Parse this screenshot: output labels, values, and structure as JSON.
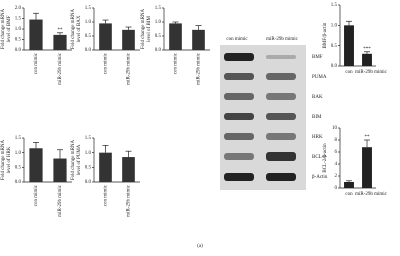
{
  "chart_data": [
    {
      "type": "bar",
      "ylabel": [
        "Fold change mRNA",
        "level of BMF"
      ],
      "categories": [
        "con mimic",
        "miR-29b mimic"
      ],
      "values": [
        1.45,
        0.72
      ],
      "errors": [
        0.3,
        0.1
      ],
      "significance": [
        null,
        "**"
      ],
      "color": "#333333",
      "ylim": [
        0,
        2.0
      ],
      "yticks": [
        {
          "value": 0,
          "label": "0.0"
        },
        {
          "value": 0.5,
          "label": "0.5"
        },
        {
          "value": 1.0,
          "label": "1.0"
        },
        {
          "value": 1.5,
          "label": "1.5"
        },
        {
          "value": 2.0,
          "label": "2.0"
        }
      ]
    },
    {
      "type": "bar",
      "ylabel": [
        "Fold change mRNA",
        "level of BAX"
      ],
      "categories": [
        "con mimic",
        "miR-29b mimic"
      ],
      "values": [
        0.95,
        0.72
      ],
      "errors": [
        0.12,
        0.1
      ],
      "significance": [
        null,
        null
      ],
      "color": "#333333",
      "ylim": [
        0,
        1.5
      ],
      "yticks": [
        {
          "value": 0,
          "label": "0.0"
        },
        {
          "value": 0.5,
          "label": "0.5"
        },
        {
          "value": 1.0,
          "label": "1.0"
        },
        {
          "value": 1.5,
          "label": "1.5"
        }
      ]
    },
    {
      "type": "bar",
      "ylabel": [
        "Fold change mRNA",
        "level of BIM"
      ],
      "categories": [
        "con mimic",
        "miR-29b mimic"
      ],
      "values": [
        0.95,
        0.72
      ],
      "errors": [
        0.05,
        0.15
      ],
      "significance": [
        null,
        null
      ],
      "color": "#333333",
      "ylim": [
        0,
        1.5
      ],
      "yticks": [
        {
          "value": 0,
          "label": "0.0"
        },
        {
          "value": 0.5,
          "label": "0.5"
        },
        {
          "value": 1.0,
          "label": "1.0"
        },
        {
          "value": 1.5,
          "label": "1.5"
        }
      ]
    },
    {
      "type": "bar",
      "ylabel": [
        "Fold change mRNA",
        "level of HRK"
      ],
      "categories": [
        "con mimic",
        "miR-29b mimic"
      ],
      "values": [
        1.15,
        0.8
      ],
      "errors": [
        0.2,
        0.3
      ],
      "significance": [
        null,
        null
      ],
      "color": "#333333",
      "ylim": [
        0,
        1.5
      ],
      "yticks": [
        {
          "value": 0,
          "label": "0.0"
        },
        {
          "value": 0.5,
          "label": "0.5"
        },
        {
          "value": 1.0,
          "label": "1.0"
        },
        {
          "value": 1.5,
          "label": "1.5"
        }
      ]
    },
    {
      "type": "bar",
      "ylabel": [
        "Fold change mRNA",
        "level of PUMA"
      ],
      "categories": [
        "con mimic",
        "miR-29b mimic"
      ],
      "values": [
        1.0,
        0.85
      ],
      "errors": [
        0.25,
        0.2
      ],
      "significance": [
        null,
        null
      ],
      "color": "#333333",
      "ylim": [
        0,
        1.5
      ],
      "yticks": [
        {
          "value": 0,
          "label": "0.0"
        },
        {
          "value": 0.5,
          "label": "0.5"
        },
        {
          "value": 1.0,
          "label": "1.0"
        },
        {
          "value": 1.5,
          "label": "1.5"
        }
      ]
    },
    {
      "type": "bar",
      "ylabel": [
        "BMF/β-actin"
      ],
      "categories": [
        "con",
        "miR-29b mimic"
      ],
      "values": [
        1.0,
        0.3
      ],
      "errors": [
        0.1,
        0.05
      ],
      "significance": [
        null,
        "***"
      ],
      "color": "#222222",
      "ylim": [
        0,
        1.5
      ],
      "yticks": [
        {
          "value": 0,
          "label": "0.0"
        },
        {
          "value": 0.5,
          "label": "0.5"
        },
        {
          "value": 1.0,
          "label": "1.0"
        },
        {
          "value": 1.5,
          "label": "1.5"
        }
      ]
    },
    {
      "type": "bar",
      "ylabel": [
        "BCL-2/β-actin"
      ],
      "categories": [
        "con",
        "miR-29b mimic"
      ],
      "values": [
        1.0,
        6.8
      ],
      "errors": [
        0.2,
        1.2
      ],
      "significance": [
        null,
        "**"
      ],
      "color": "#222222",
      "ylim": [
        0,
        10
      ],
      "yticks": [
        0,
        2,
        4,
        6,
        8,
        10
      ]
    }
  ],
  "blot": {
    "lanes": [
      "con mimic",
      "miR-29b mimic"
    ],
    "bands": [
      "BMF",
      "PUMA",
      "BAK",
      "BIM",
      "HRK",
      "BCL-2",
      "β-Actin"
    ]
  },
  "caption": "(a)"
}
